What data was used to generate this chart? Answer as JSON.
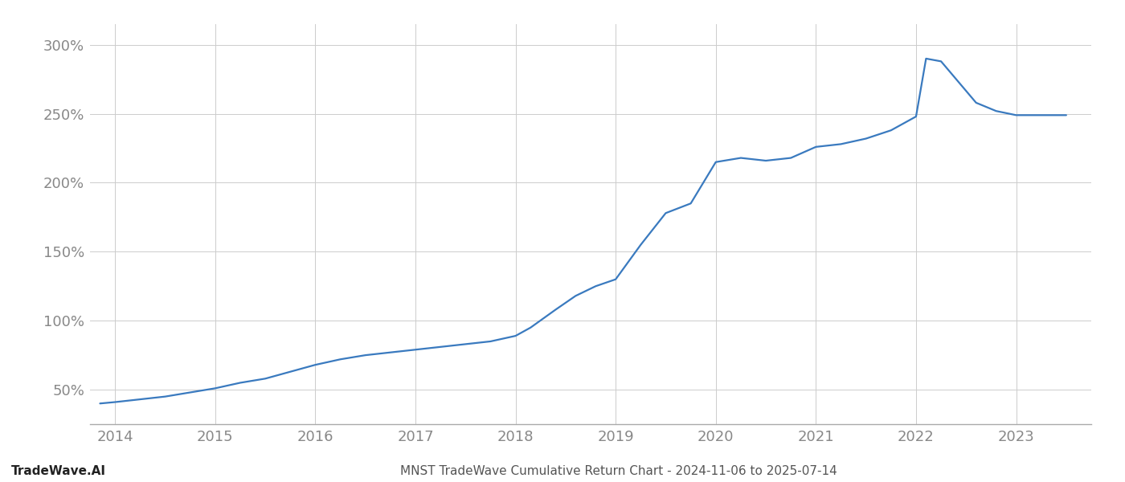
{
  "title": "MNST TradeWave Cumulative Return Chart - 2024-11-06 to 2025-07-14",
  "watermark": "TradeWave.AI",
  "line_color": "#3a7abf",
  "background_color": "#ffffff",
  "grid_color": "#cccccc",
  "x_years": [
    2013.85,
    2014.0,
    2014.25,
    2014.5,
    2014.75,
    2015.0,
    2015.25,
    2015.5,
    2015.75,
    2016.0,
    2016.25,
    2016.5,
    2016.75,
    2017.0,
    2017.25,
    2017.5,
    2017.75,
    2018.0,
    2018.15,
    2018.4,
    2018.6,
    2018.8,
    2019.0,
    2019.25,
    2019.5,
    2019.75,
    2020.0,
    2020.25,
    2020.5,
    2020.75,
    2021.0,
    2021.25,
    2021.5,
    2021.75,
    2022.0,
    2022.1,
    2022.25,
    2022.6,
    2022.8,
    2023.0,
    2023.5
  ],
  "y_values": [
    40,
    41,
    43,
    45,
    48,
    51,
    55,
    58,
    63,
    68,
    72,
    75,
    77,
    79,
    81,
    83,
    85,
    89,
    95,
    108,
    118,
    125,
    130,
    155,
    178,
    185,
    215,
    218,
    216,
    218,
    226,
    228,
    232,
    238,
    248,
    290,
    288,
    258,
    252,
    249,
    249
  ],
  "xlim": [
    2013.75,
    2023.75
  ],
  "ylim": [
    25,
    315
  ],
  "yticks": [
    50,
    100,
    150,
    200,
    250,
    300
  ],
  "xticks": [
    2014,
    2015,
    2016,
    2017,
    2018,
    2019,
    2020,
    2021,
    2022,
    2023
  ],
  "title_fontsize": 11,
  "tick_fontsize": 13,
  "line_width": 1.6,
  "axis_label_color": "#888888",
  "title_color": "#555555"
}
